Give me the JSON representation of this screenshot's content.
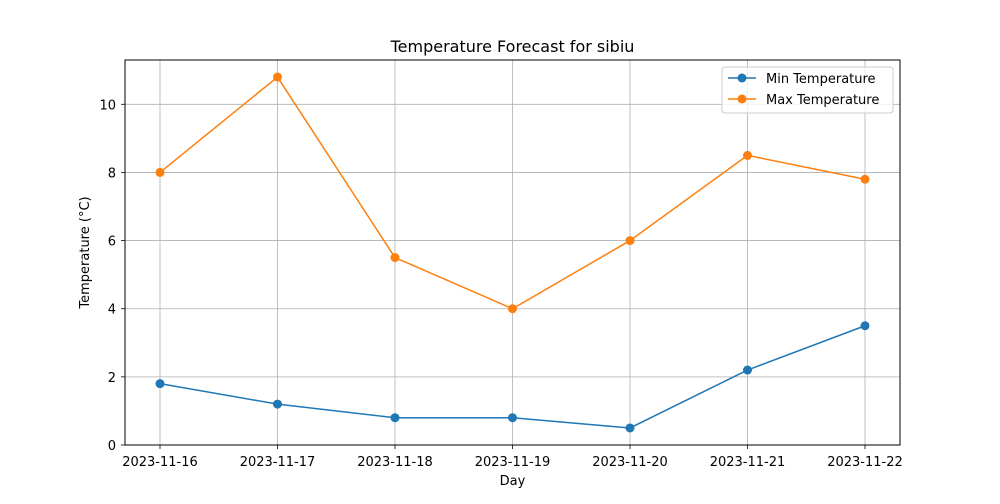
{
  "chart_data": {
    "type": "line",
    "title": "Temperature Forecast for sibiu",
    "xlabel": "Day",
    "ylabel": "Temperature (°C)",
    "categories": [
      "2023-11-16",
      "2023-11-17",
      "2023-11-18",
      "2023-11-19",
      "2023-11-20",
      "2023-11-21",
      "2023-11-22"
    ],
    "series": [
      {
        "name": "Min Temperature",
        "values": [
          1.8,
          1.2,
          0.8,
          0.8,
          0.5,
          2.2,
          3.5
        ],
        "color": "#1f77b4",
        "marker": "circle"
      },
      {
        "name": "Max Temperature",
        "values": [
          8.0,
          10.8,
          5.5,
          4.0,
          6.0,
          8.5,
          7.8
        ],
        "color": "#ff7f0e",
        "marker": "circle"
      }
    ],
    "yticks": [
      0,
      2,
      4,
      6,
      8,
      10
    ],
    "ylim": [
      0,
      11.3
    ],
    "grid": true,
    "legend": "top-right"
  }
}
